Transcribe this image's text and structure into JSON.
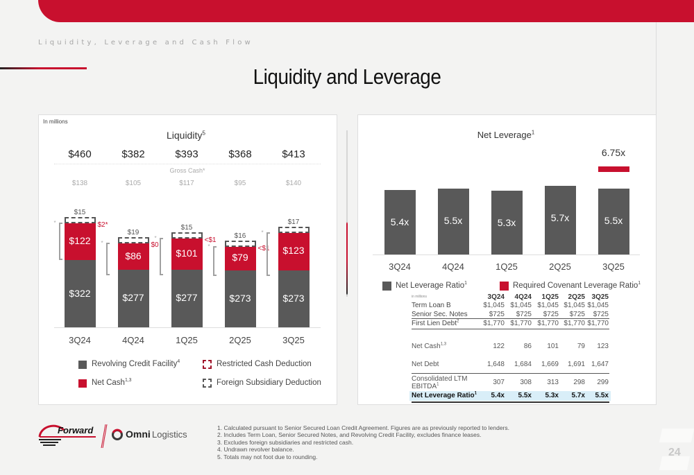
{
  "header": {
    "section_label": "Liquidity, Leverage and Cash Flow",
    "page_title": "Liquidity and Leverage",
    "brand_color": "#c8102e"
  },
  "left_panel": {
    "units_note": "In millions",
    "title": "Liquidity",
    "title_sup": "5",
    "gross_cash_label": "Gross Cash*",
    "legend": [
      {
        "label": "Revolving Credit Facility",
        "sup": "4",
        "color": "#595959",
        "style": "solid"
      },
      {
        "label": "Restricted Cash Deduction",
        "sup": "",
        "color": "#c8102e",
        "style": "dashed"
      },
      {
        "label": "Net Cash",
        "sup": "1,3",
        "color": "#c8102e",
        "style": "solid"
      },
      {
        "label": "Foreign Subsidiary Deduction",
        "sup": "",
        "color": "#555555",
        "style": "dashed"
      }
    ]
  },
  "right_panel": {
    "title": "Net Leverage",
    "title_sup": "1",
    "legend": [
      {
        "label": "Net Leverage Ratio",
        "sup": "1",
        "color": "#595959"
      },
      {
        "label": "Required Covenant Leverage Ratio",
        "sup": "1",
        "color": "#c8102e"
      }
    ],
    "table": {
      "units_note": "in millions",
      "columns": [
        "3Q24",
        "4Q24",
        "1Q25",
        "2Q25",
        "3Q25"
      ],
      "rows": [
        {
          "label": "Term Loan B",
          "sup": "",
          "values": [
            "$1,045",
            "$1,045",
            "$1,045",
            "$1,045",
            "$1,045"
          ]
        },
        {
          "label": "Senior Sec. Notes",
          "sup": "",
          "values": [
            "$725",
            "$725",
            "$725",
            "$725",
            "$725"
          ]
        },
        {
          "label": "First Lien Debt",
          "sup": "2",
          "values": [
            "$1,770",
            "$1,770",
            "$1,770",
            "$1,770",
            "$1,770"
          ]
        },
        {
          "label": "Net Cash",
          "sup": "1,3",
          "values": [
            "122",
            "86",
            "101",
            "79",
            "123"
          ]
        },
        {
          "label": "Net Debt",
          "sup": "",
          "values": [
            "1,648",
            "1,684",
            "1,669",
            "1,691",
            "1,647"
          ]
        },
        {
          "label": "Consolidated LTM",
          "label2": "EBITDA",
          "sup": "1",
          "values": [
            "307",
            "308",
            "313",
            "298",
            "299"
          ]
        },
        {
          "label": "Net Leverage Ratio",
          "sup": "1",
          "values": [
            "5.4x",
            "5.5x",
            "5.3x",
            "5.7x",
            "5.5x"
          ],
          "highlight": "#d9eef8"
        }
      ]
    }
  },
  "chart_data": [
    {
      "type": "bar",
      "stacked": true,
      "title": "Liquidity (In millions)",
      "categories": [
        "3Q24",
        "4Q24",
        "1Q25",
        "2Q25",
        "3Q25"
      ],
      "totals": [
        "$460",
        "$382",
        "$393",
        "$368",
        "$413"
      ],
      "gross_cash": [
        "$138",
        "$105",
        "$117",
        "$95",
        "$140"
      ],
      "series": [
        {
          "name": "Revolving Credit Facility",
          "values": [
            322,
            277,
            277,
            273,
            273
          ],
          "labels": [
            "$322",
            "$277",
            "$277",
            "$273",
            "$273"
          ],
          "color": "#595959"
        },
        {
          "name": "Net Cash",
          "values": [
            122,
            86,
            101,
            79,
            123
          ],
          "labels": [
            "$122",
            "$86",
            "$101",
            "$79",
            "$123"
          ],
          "color": "#c8102e"
        },
        {
          "name": "Foreign Subsidiary Deduction",
          "values": [
            15,
            19,
            15,
            16,
            17
          ],
          "labels": [
            "$15",
            "$19",
            "$15",
            "$16",
            "$17"
          ],
          "color": "#555555"
        },
        {
          "name": "Restricted Cash Deduction",
          "labels": [
            "$2*",
            "$0",
            "<$1",
            "<$1",
            ""
          ],
          "color": "#c8102e"
        }
      ],
      "legend_position": "bottom"
    },
    {
      "type": "bar",
      "title": "Net Leverage",
      "categories": [
        "3Q24",
        "4Q24",
        "1Q25",
        "2Q25",
        "3Q25"
      ],
      "series": [
        {
          "name": "Net Leverage Ratio",
          "values": [
            5.4,
            5.5,
            5.3,
            5.7,
            5.5
          ],
          "labels": [
            "5.4x",
            "5.5x",
            "5.3x",
            "5.7x",
            "5.5x"
          ],
          "color": "#595959"
        },
        {
          "name": "Required Covenant Leverage Ratio",
          "values": [
            null,
            null,
            null,
            null,
            6.75
          ],
          "labels": [
            "",
            "",
            "",
            "",
            "6.75x"
          ],
          "color": "#c8102e"
        }
      ],
      "legend_position": "bottom"
    }
  ],
  "footer": {
    "logo_forward": "Forward",
    "logo_omni_bold": "Omni",
    "logo_omni_light": "Logistics",
    "footnotes": [
      "1.  Calculated pursuant to Senior Secured Loan Credit Agreement. Figures are as previously reported to lenders.",
      "2.  Includes Term Loan, Senior Secured Notes, and Revolving Credit Facility, excludes finance leases.",
      "3.  Excludes foreign subsidiaries and restricted cash.",
      "4.  Undrawn revolver balance.",
      "5.  Totals may not foot due to rounding."
    ],
    "page_number": "24"
  }
}
